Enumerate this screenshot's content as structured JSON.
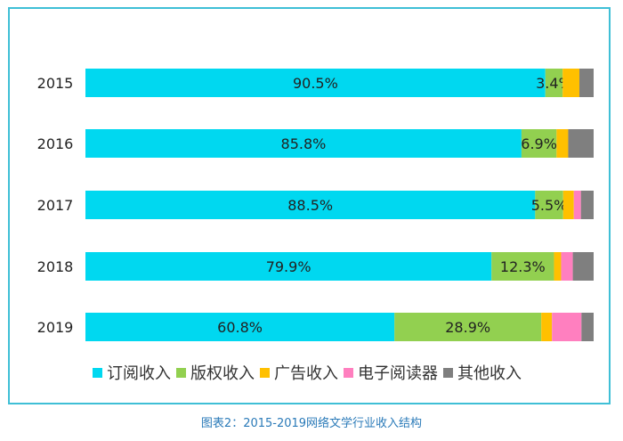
{
  "chart_data": {
    "type": "bar",
    "orientation": "horizontal",
    "stacked": "percent",
    "categories": [
      "2015",
      "2016",
      "2017",
      "2018",
      "2019"
    ],
    "series": [
      {
        "name": "订阅收入",
        "color": "#00d8f0",
        "values": [
          90.5,
          85.8,
          88.5,
          79.9,
          60.8
        ],
        "labels": [
          "90.5%",
          "85.8%",
          "88.5%",
          "79.9%",
          "60.8%"
        ]
      },
      {
        "name": "版权收入",
        "color": "#92d050",
        "values": [
          3.4,
          6.9,
          5.5,
          12.3,
          28.9
        ],
        "labels": [
          "3.4%",
          "6.9%",
          "5.5%",
          "12.3%",
          "28.9%"
        ]
      },
      {
        "name": "广告收入",
        "color": "#ffc000",
        "values": [
          3.3,
          2.3,
          2.1,
          1.4,
          2.1
        ],
        "labels": [
          "",
          "",
          "",
          "",
          ""
        ]
      },
      {
        "name": "电子阅读器",
        "color": "#ff7fbf",
        "values": [
          0,
          0,
          1.4,
          2.3,
          5.8
        ],
        "labels": [
          "",
          "",
          "",
          "",
          ""
        ]
      },
      {
        "name": "其他收入",
        "color": "#7f7f7f",
        "values": [
          2.8,
          5.0,
          2.5,
          4.1,
          2.4
        ],
        "labels": [
          "",
          "",
          "",
          "",
          ""
        ]
      }
    ],
    "xlim": [
      0,
      100
    ],
    "grid": false,
    "legend": "bottom",
    "caption": "图表2：2015-2019网络文学行业收入结构"
  }
}
